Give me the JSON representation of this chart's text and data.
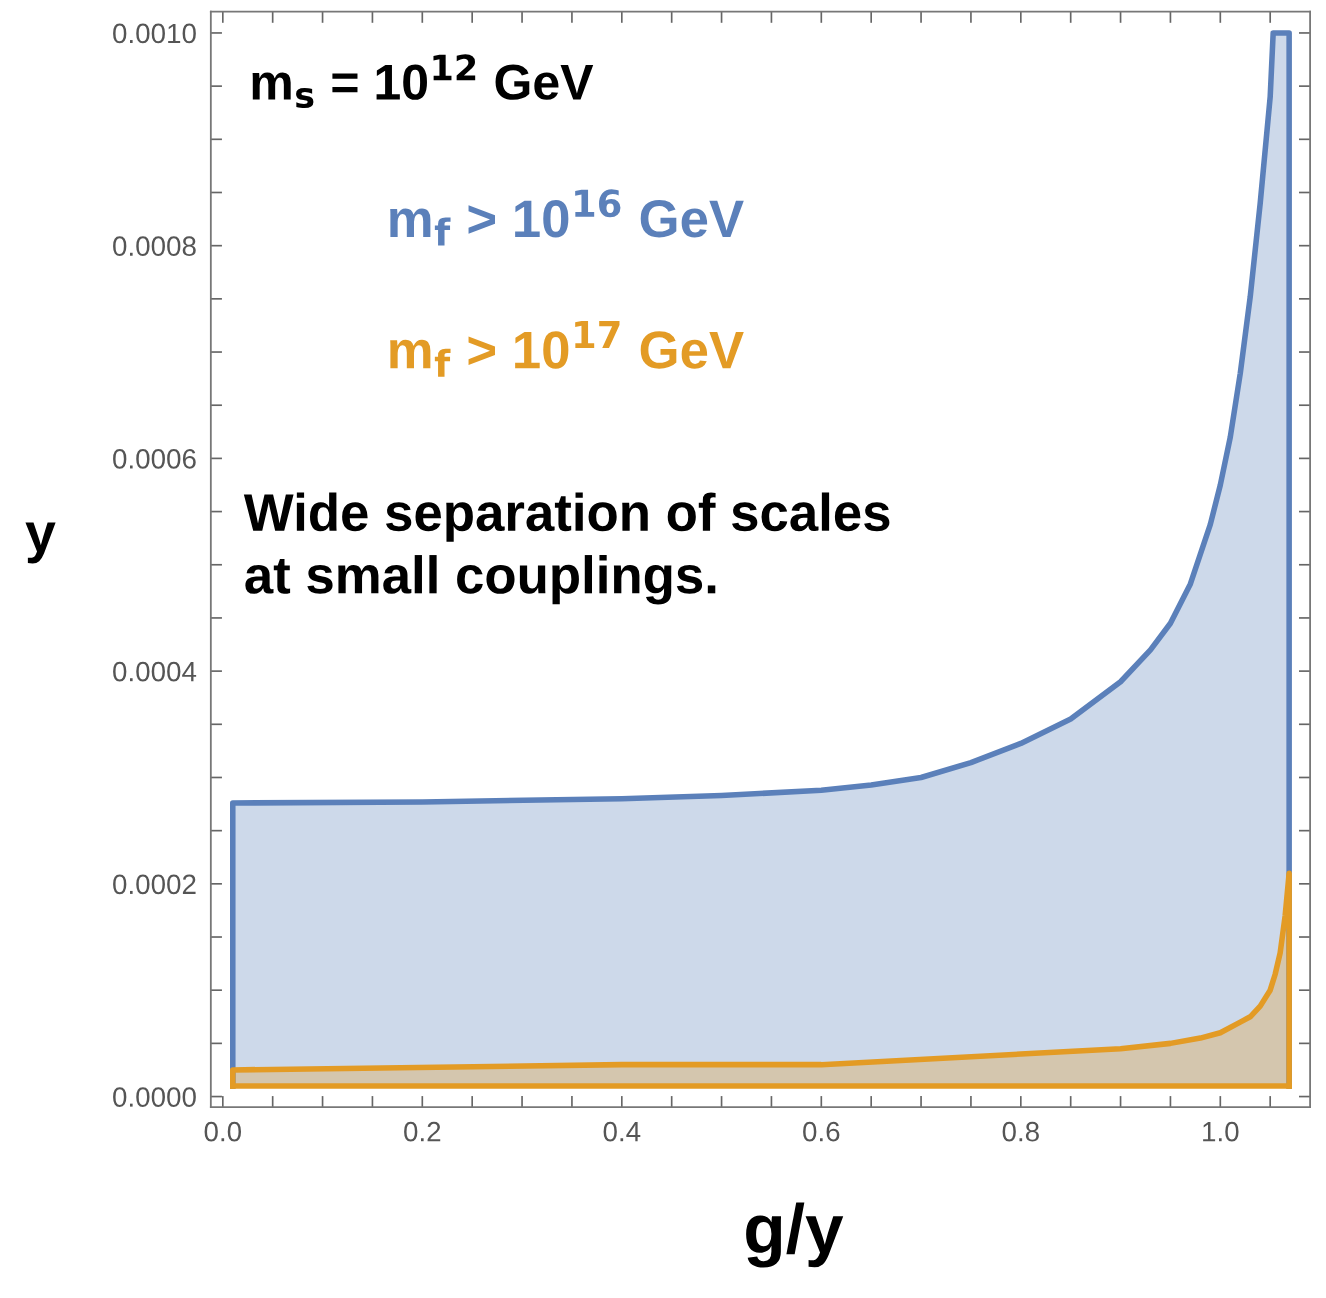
{
  "chart_data": {
    "type": "area",
    "xlabel": "g/y",
    "ylabel": "y",
    "xlim": [
      -0.012,
      1.09
    ],
    "ylim": [
      -1e-05,
      0.00102
    ],
    "xticks": [
      {
        "value": 0.0,
        "label": "0.0"
      },
      {
        "value": 0.05,
        "label": null
      },
      {
        "value": 0.1,
        "label": null
      },
      {
        "value": 0.15,
        "label": null
      },
      {
        "value": 0.2,
        "label": "0.2"
      },
      {
        "value": 0.25,
        "label": null
      },
      {
        "value": 0.3,
        "label": null
      },
      {
        "value": 0.35,
        "label": null
      },
      {
        "value": 0.4,
        "label": "0.4"
      },
      {
        "value": 0.45,
        "label": null
      },
      {
        "value": 0.5,
        "label": null
      },
      {
        "value": 0.55,
        "label": null
      },
      {
        "value": 0.6,
        "label": "0.6"
      },
      {
        "value": 0.65,
        "label": null
      },
      {
        "value": 0.7,
        "label": null
      },
      {
        "value": 0.75,
        "label": null
      },
      {
        "value": 0.8,
        "label": "0.8"
      },
      {
        "value": 0.85,
        "label": null
      },
      {
        "value": 0.9,
        "label": null
      },
      {
        "value": 0.95,
        "label": null
      },
      {
        "value": 1.0,
        "label": "1.0"
      },
      {
        "value": 1.05,
        "label": null
      }
    ],
    "yticks": [
      {
        "value": 0,
        "label": "0.0000"
      },
      {
        "value": 5e-05,
        "label": null
      },
      {
        "value": 0.0001,
        "label": null
      },
      {
        "value": 0.00015,
        "label": null
      },
      {
        "value": 0.0002,
        "label": "0.0002"
      },
      {
        "value": 0.00025,
        "label": null
      },
      {
        "value": 0.0003,
        "label": null
      },
      {
        "value": 0.00035,
        "label": null
      },
      {
        "value": 0.0004,
        "label": "0.0004"
      },
      {
        "value": 0.00045,
        "label": null
      },
      {
        "value": 0.0005,
        "label": null
      },
      {
        "value": 0.00055,
        "label": null
      },
      {
        "value": 0.0006,
        "label": "0.0006"
      },
      {
        "value": 0.00065,
        "label": null
      },
      {
        "value": 0.0007,
        "label": null
      },
      {
        "value": 0.00075,
        "label": null
      },
      {
        "value": 0.0008,
        "label": "0.0008"
      },
      {
        "value": 0.00085,
        "label": null
      },
      {
        "value": 0.0009,
        "label": null
      },
      {
        "value": 0.00095,
        "label": null
      },
      {
        "value": 0.001,
        "label": "0.0010"
      }
    ],
    "grid": false,
    "legend": false,
    "annotations": [
      "m$_{s}$ = 10$^{12}$ GeV",
      "Wide separation of scales\nat small couplings."
    ],
    "series": [
      {
        "name": "m$_{f}$ > 10$^{16}$ GeV",
        "color": "#5b80ba",
        "x": [
          0.01,
          0.2,
          0.4,
          0.5,
          0.6,
          0.65,
          0.7,
          0.75,
          0.8,
          0.85,
          0.9,
          0.93,
          0.95,
          0.97,
          0.99,
          1.0,
          1.01,
          1.02,
          1.03,
          1.04,
          1.05,
          1.053,
          1.069
        ],
        "values": [
          0.000276,
          0.000277,
          0.00028,
          0.000283,
          0.000288,
          0.000293,
          0.0003,
          0.000314,
          0.000332,
          0.000355,
          0.00039,
          0.00042,
          0.000445,
          0.000482,
          0.000538,
          0.000575,
          0.00062,
          0.00068,
          0.000752,
          0.00084,
          0.00094,
          0.001,
          0.001
        ]
      },
      {
        "name": "m$_{f}$ > 10$^{17}$ GeV",
        "color": "#e39b25",
        "x": [
          0.01,
          0.4,
          0.6,
          0.8,
          0.9,
          0.95,
          0.98,
          1.0,
          1.02,
          1.03,
          1.04,
          1.05,
          1.055,
          1.06,
          1.065,
          1.069
        ],
        "values": [
          2.5e-05,
          3e-05,
          3e-05,
          4e-05,
          4.5e-05,
          5e-05,
          5.5e-05,
          6e-05,
          7e-05,
          7.5e-05,
          8.5e-05,
          0.0001,
          0.000115,
          0.000135,
          0.00017,
          0.00021
        ]
      },
      {
        "type": "line",
        "color": "#e39b25",
        "x": [
          0.01,
          1.069
        ],
        "values": [
          1e-05,
          1e-05
        ]
      }
    ]
  }
}
